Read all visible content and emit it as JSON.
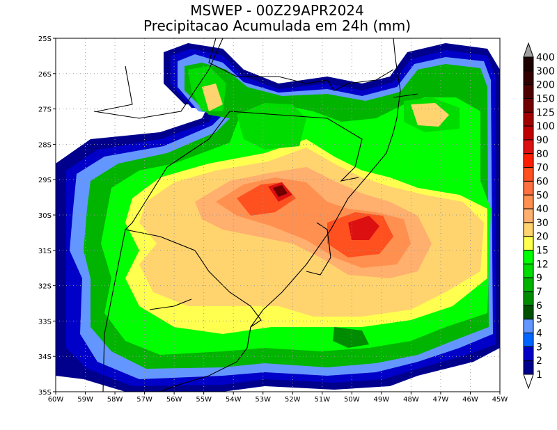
{
  "header": {
    "title": "MSWEP - 00Z29APR2024",
    "subtitle": "Precipitacao Acumulada em 24h (mm)"
  },
  "axes": {
    "lon_labels": [
      "60W",
      "59W",
      "58W",
      "57W",
      "56W",
      "55W",
      "54W",
      "53W",
      "52W",
      "51W",
      "50W",
      "49W",
      "48W",
      "47W",
      "46W",
      "45W"
    ],
    "lat_labels": [
      "25S",
      "26S",
      "27S",
      "28S",
      "29S",
      "30S",
      "31S",
      "32S",
      "33S",
      "34S",
      "35S"
    ]
  },
  "colorbar": {
    "labels": [
      "400",
      "300",
      "200",
      "150",
      "125",
      "100",
      "90",
      "80",
      "70",
      "60",
      "50",
      "40",
      "30",
      "20",
      "15",
      "12",
      "9",
      "7",
      "6",
      "5",
      "4",
      "3",
      "2",
      "1"
    ],
    "colors": [
      "#1c0000",
      "#300000",
      "#4c0000",
      "#700000",
      "#a00000",
      "#c00000",
      "#dc1010",
      "#ff1e00",
      "#ff5020",
      "#ff7040",
      "#ff9050",
      "#ffaf6e",
      "#ffd46e",
      "#ffff50",
      "#00ff00",
      "#00dc00",
      "#00b400",
      "#008c00",
      "#005000",
      "#6496ff",
      "#0064ff",
      "#0000c8",
      "#00008c"
    ],
    "over_color": "#a0a0a0",
    "under_color": "#ffffff"
  }
}
